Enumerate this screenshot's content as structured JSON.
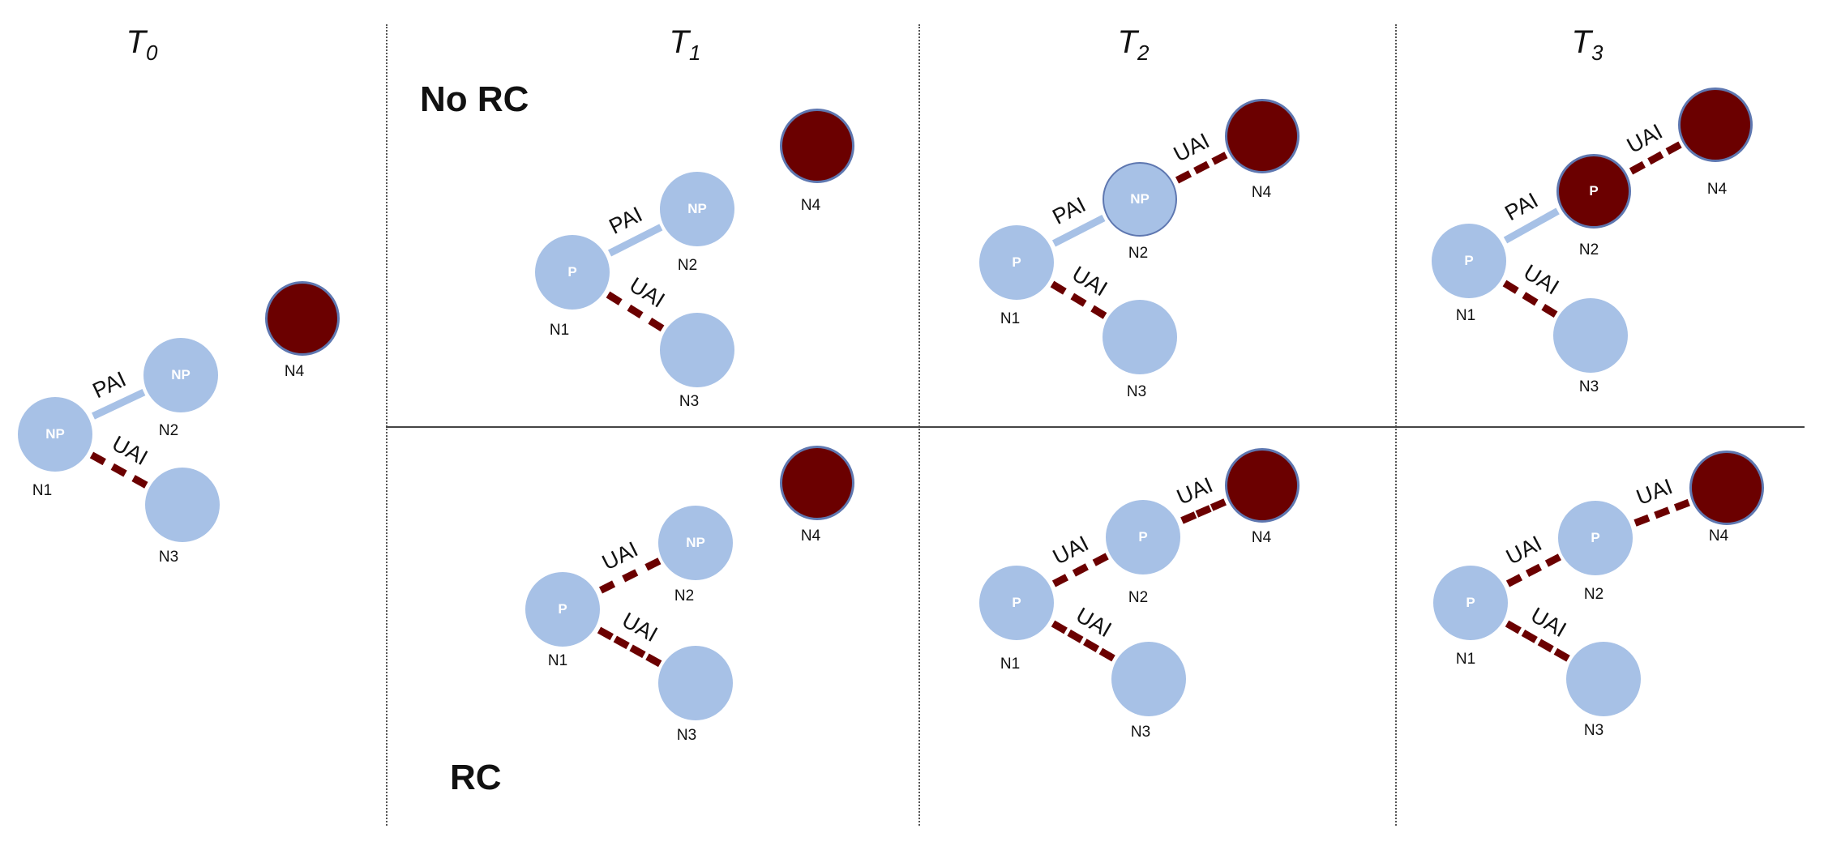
{
  "titles": {
    "t0": {
      "base": "T",
      "sub": "0"
    },
    "t1": {
      "base": "T",
      "sub": "1"
    },
    "t2": {
      "base": "T",
      "sub": "2"
    },
    "t3": {
      "base": "T",
      "sub": "3"
    }
  },
  "row_labels": {
    "no_rc": "No RC",
    "rc": "RC"
  },
  "colors": {
    "light_node": "#a7c1e6",
    "dark_node": "#6b0000",
    "pai_edge": "#a7c1e6",
    "uai_edge": "#6b0000",
    "outline": "#5e77b0"
  },
  "panels": [
    {
      "id": "t0",
      "nodes": [
        {
          "id": "N1",
          "text": "NP",
          "color": "light"
        },
        {
          "id": "N2",
          "text": "NP",
          "color": "light"
        },
        {
          "id": "N3",
          "text": "",
          "color": "light"
        },
        {
          "id": "N4",
          "text": "",
          "color": "dark"
        }
      ],
      "edges": [
        {
          "from": "N1",
          "to": "N2",
          "type": "PAI"
        },
        {
          "from": "N1",
          "to": "N3",
          "type": "UAI"
        }
      ]
    },
    {
      "id": "t1-no-rc",
      "nodes": [
        {
          "id": "N1",
          "text": "P",
          "color": "light"
        },
        {
          "id": "N2",
          "text": "NP",
          "color": "light"
        },
        {
          "id": "N3",
          "text": "",
          "color": "light"
        },
        {
          "id": "N4",
          "text": "",
          "color": "dark"
        }
      ],
      "edges": [
        {
          "from": "N1",
          "to": "N2",
          "type": "PAI"
        },
        {
          "from": "N1",
          "to": "N3",
          "type": "UAI"
        }
      ]
    },
    {
      "id": "t2-no-rc",
      "nodes": [
        {
          "id": "N1",
          "text": "P",
          "color": "light"
        },
        {
          "id": "N2",
          "text": "NP",
          "color": "light"
        },
        {
          "id": "N3",
          "text": "",
          "color": "light"
        },
        {
          "id": "N4",
          "text": "",
          "color": "dark"
        }
      ],
      "edges": [
        {
          "from": "N1",
          "to": "N2",
          "type": "PAI"
        },
        {
          "from": "N1",
          "to": "N3",
          "type": "UAI"
        },
        {
          "from": "N2",
          "to": "N4",
          "type": "UAI"
        }
      ]
    },
    {
      "id": "t3-no-rc",
      "nodes": [
        {
          "id": "N1",
          "text": "P",
          "color": "light"
        },
        {
          "id": "N2",
          "text": "P",
          "color": "dark"
        },
        {
          "id": "N3",
          "text": "",
          "color": "light"
        },
        {
          "id": "N4",
          "text": "",
          "color": "dark"
        }
      ],
      "edges": [
        {
          "from": "N1",
          "to": "N2",
          "type": "PAI"
        },
        {
          "from": "N1",
          "to": "N3",
          "type": "UAI"
        },
        {
          "from": "N2",
          "to": "N4",
          "type": "UAI"
        }
      ]
    },
    {
      "id": "t1-rc",
      "nodes": [
        {
          "id": "N1",
          "text": "P",
          "color": "light"
        },
        {
          "id": "N2",
          "text": "NP",
          "color": "light"
        },
        {
          "id": "N3",
          "text": "",
          "color": "light"
        },
        {
          "id": "N4",
          "text": "",
          "color": "dark"
        }
      ],
      "edges": [
        {
          "from": "N1",
          "to": "N2",
          "type": "UAI"
        },
        {
          "from": "N1",
          "to": "N3",
          "type": "UAI"
        }
      ]
    },
    {
      "id": "t2-rc",
      "nodes": [
        {
          "id": "N1",
          "text": "P",
          "color": "light"
        },
        {
          "id": "N2",
          "text": "P",
          "color": "light"
        },
        {
          "id": "N3",
          "text": "",
          "color": "light"
        },
        {
          "id": "N4",
          "text": "",
          "color": "dark"
        }
      ],
      "edges": [
        {
          "from": "N1",
          "to": "N2",
          "type": "UAI"
        },
        {
          "from": "N1",
          "to": "N3",
          "type": "UAI"
        },
        {
          "from": "N2",
          "to": "N4",
          "type": "UAI"
        }
      ]
    },
    {
      "id": "t3-rc",
      "nodes": [
        {
          "id": "N1",
          "text": "P",
          "color": "light"
        },
        {
          "id": "N2",
          "text": "P",
          "color": "light"
        },
        {
          "id": "N3",
          "text": "",
          "color": "light"
        },
        {
          "id": "N4",
          "text": "",
          "color": "dark"
        }
      ],
      "edges": [
        {
          "from": "N1",
          "to": "N2",
          "type": "UAI"
        },
        {
          "from": "N1",
          "to": "N3",
          "type": "UAI"
        },
        {
          "from": "N2",
          "to": "N4",
          "type": "UAI"
        }
      ]
    }
  ]
}
